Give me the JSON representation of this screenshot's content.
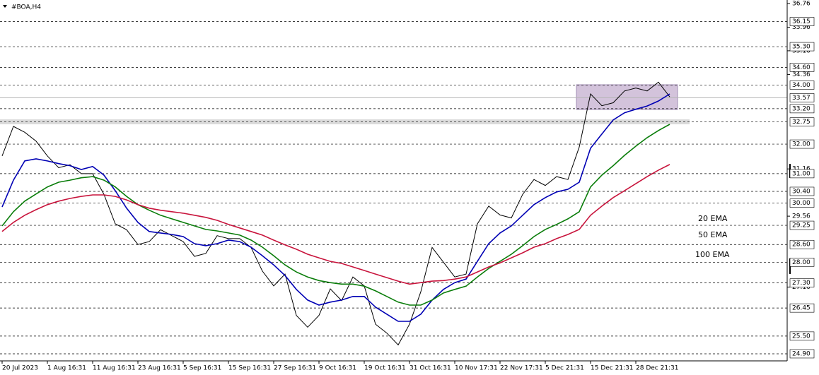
{
  "chart_data": {
    "type": "line",
    "title": "#BOA,H4",
    "categories": [
      "20 Jul 2023",
      null,
      null,
      null,
      "1 Aug 16:31",
      null,
      null,
      null,
      "11 Aug 16:31",
      null,
      null,
      null,
      "23 Aug 16:31",
      null,
      null,
      null,
      "5 Sep 16:31",
      null,
      null,
      null,
      "15 Sep 16:31",
      null,
      null,
      null,
      "27 Sep 16:31",
      null,
      null,
      null,
      "9 Oct 16:31",
      null,
      null,
      null,
      "19 Oct 16:31",
      null,
      null,
      null,
      "31 Oct 16:31",
      null,
      null,
      null,
      "10 Nov 17:31",
      null,
      null,
      null,
      "22 Nov 17:31",
      null,
      null,
      null,
      "5 Dec 21:31",
      null,
      null,
      null,
      "15 Dec 21:31",
      null,
      null,
      null,
      "28 Dec 21:31",
      null,
      null,
      null
    ],
    "series": [
      {
        "color": "#000000",
        "values": [
          31.6,
          32.6,
          32.4,
          32.1,
          31.6,
          31.2,
          31.3,
          31.0,
          31.0,
          30.3,
          29.3,
          29.1,
          28.6,
          28.7,
          29.1,
          28.9,
          28.7,
          28.2,
          28.3,
          28.9,
          28.8,
          28.8,
          28.5,
          27.7,
          27.2,
          27.6,
          26.2,
          25.8,
          26.2,
          27.1,
          26.7,
          27.5,
          27.2,
          25.9,
          25.6,
          25.2,
          25.9,
          27.0,
          28.5,
          28.0,
          27.5,
          27.6,
          29.3,
          29.9,
          29.6,
          29.5,
          30.3,
          30.8,
          30.6,
          30.9,
          30.8,
          31.9,
          33.7,
          33.3,
          33.4,
          33.8,
          33.9,
          33.8,
          34.1,
          33.6
        ]
      },
      {
        "name": "20 EMA",
        "color": "#0000b4",
        "values": [
          29.87,
          30.78,
          31.43,
          31.5,
          31.43,
          31.34,
          31.27,
          31.14,
          31.24,
          30.95,
          30.42,
          29.83,
          29.35,
          29.04,
          28.99,
          28.94,
          28.87,
          28.63,
          28.56,
          28.63,
          28.75,
          28.7,
          28.51,
          28.22,
          27.91,
          27.55,
          27.08,
          26.72,
          26.55,
          26.65,
          26.72,
          26.84,
          26.84,
          26.48,
          26.24,
          26.0,
          26.0,
          26.24,
          26.72,
          27.08,
          27.31,
          27.43,
          28.03,
          28.63,
          28.99,
          29.23,
          29.59,
          29.95,
          30.19,
          30.38,
          30.47,
          30.71,
          31.86,
          32.34,
          32.82,
          33.06,
          33.18,
          33.29,
          33.46,
          33.7
        ]
      },
      {
        "name": "50 EMA",
        "color": "#0a7d0a",
        "values": [
          29.23,
          29.71,
          30.07,
          30.31,
          30.55,
          30.71,
          30.78,
          30.86,
          30.9,
          30.78,
          30.55,
          30.23,
          29.95,
          29.76,
          29.59,
          29.47,
          29.35,
          29.23,
          29.11,
          29.06,
          28.99,
          28.92,
          28.75,
          28.51,
          28.22,
          27.91,
          27.67,
          27.5,
          27.38,
          27.31,
          27.26,
          27.26,
          27.19,
          27.03,
          26.84,
          26.65,
          26.55,
          26.55,
          26.72,
          26.96,
          27.08,
          27.19,
          27.5,
          27.79,
          28.03,
          28.27,
          28.56,
          28.87,
          29.11,
          29.28,
          29.47,
          29.71,
          30.55,
          30.95,
          31.27,
          31.62,
          31.93,
          32.22,
          32.46,
          32.67
        ]
      },
      {
        "name": "100 EMA",
        "color": "#c8143c",
        "values": [
          29.04,
          29.35,
          29.59,
          29.78,
          29.95,
          30.07,
          30.16,
          30.23,
          30.28,
          30.28,
          30.23,
          30.11,
          29.95,
          29.83,
          29.76,
          29.71,
          29.66,
          29.59,
          29.52,
          29.42,
          29.28,
          29.16,
          29.04,
          28.92,
          28.75,
          28.59,
          28.44,
          28.27,
          28.15,
          28.03,
          27.96,
          27.84,
          27.72,
          27.6,
          27.48,
          27.36,
          27.26,
          27.31,
          27.36,
          27.38,
          27.43,
          27.5,
          27.67,
          27.84,
          27.98,
          28.15,
          28.32,
          28.51,
          28.63,
          28.8,
          28.94,
          29.11,
          29.59,
          29.9,
          30.19,
          30.42,
          30.66,
          30.9,
          31.12,
          31.31
        ]
      }
    ],
    "ylim": [
      24.66,
      36.88
    ],
    "yticks": [
      36.76,
      35.96,
      35.16,
      34.36,
      31.16,
      29.56,
      27.16
    ],
    "levels": [
      36.15,
      {
        "value": 35.3,
        "label": "35.30"
      },
      {
        "value": 34.6,
        "label": "34.60"
      },
      {
        "value": 34,
        "label": "34.00"
      },
      {
        "value": 33.2,
        "label": "33.20"
      },
      32.75,
      {
        "value": 32,
        "label": "32.00"
      },
      {
        "value": 31,
        "label": "31.00"
      },
      {
        "value": 30.4,
        "label": "30.40"
      },
      {
        "value": 30,
        "label": "30.00"
      },
      29.25,
      {
        "value": 28.6,
        "label": "28.60"
      },
      {
        "value": 28,
        "label": "28.00"
      },
      {
        "value": 27.3,
        "label": "27.30"
      },
      26.45,
      {
        "value": 25.5,
        "label": "25.50"
      },
      {
        "value": 24.9,
        "label": "24.90"
      }
    ],
    "last_price": 33.57
  }
}
